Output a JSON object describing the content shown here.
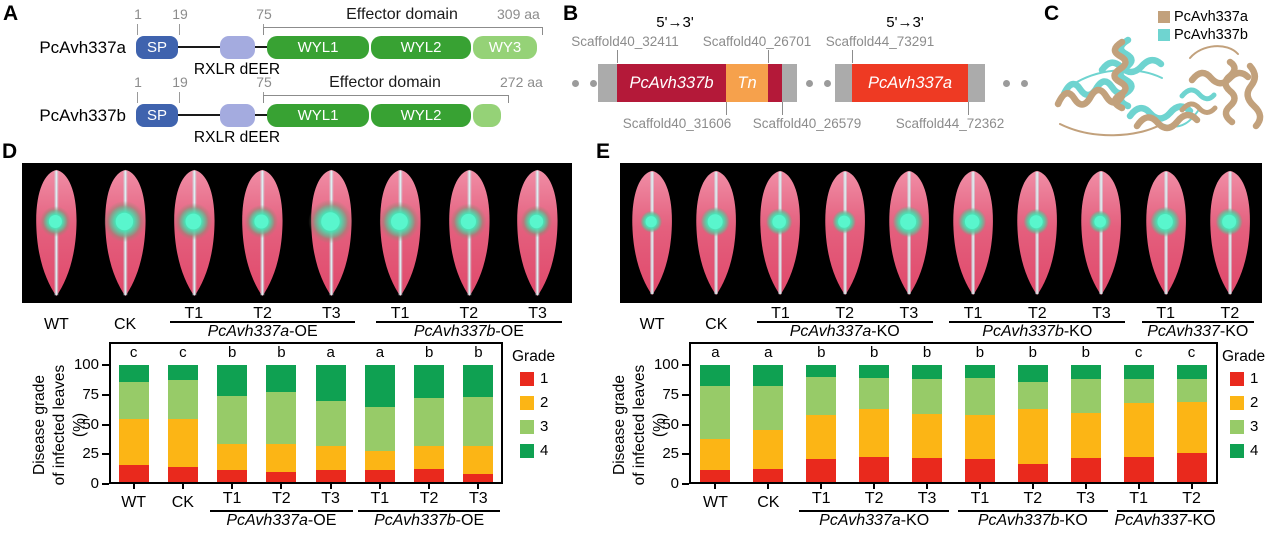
{
  "colors": {
    "grade1": "#e9291d",
    "grade2": "#fcb515",
    "grade3": "#97cb68",
    "grade4": "#0fa152",
    "sp_blue": "#3f63ae",
    "rxlr_blue": "#a4abdf",
    "wyl_green": "#38a233",
    "wy_light_green": "#95d277",
    "gene_b_red": "#b41939",
    "tn_orange": "#f6a14c",
    "gene_a_red": "#ee3a23",
    "flank_gray": "#ababab",
    "dot_gray": "#9b9b9b",
    "structure_a": "#c2a17c",
    "structure_b": "#6fd4d0"
  },
  "panels": {
    "a": {
      "label": "A",
      "positions": [
        "1",
        "19",
        "75"
      ],
      "effector_label": "Effector domain",
      "sp_label": "SP",
      "rxlr_label": "RXLR dEER",
      "proteins": [
        {
          "name": "PcAvh337a",
          "length_label": "309 aa",
          "domains": [
            "WYL1",
            "WYL2",
            "WY3"
          ]
        },
        {
          "name": "PcAvh337b",
          "length_label": "272 aa",
          "domains": [
            "WYL1",
            "WYL2",
            ""
          ]
        }
      ]
    },
    "b": {
      "label": "B",
      "direction_left": "5'→3'",
      "direction_right": "5'→3'",
      "top_labels": [
        "Scaffold40_32411",
        "Scaffold40_26701",
        "Scaffold44_73291"
      ],
      "bottom_labels": [
        "Scaffold40_31606",
        "Scaffold40_26579",
        "Scaffold44_72362"
      ],
      "gene_left": "PcAvh337b",
      "tn_label": "Tn",
      "gene_right": "PcAvh337a"
    },
    "c": {
      "label": "C",
      "legend": [
        {
          "name": "PcAvh337a",
          "color_key": "structure_a"
        },
        {
          "name": "PcAvh337b",
          "color_key": "structure_b"
        }
      ]
    },
    "d": {
      "label": "D",
      "leaf_labels": [
        "WT",
        "CK",
        "T1",
        "T2",
        "T3",
        "T1",
        "T2",
        "T3"
      ],
      "leaf_groups": [
        {
          "italic": "PcAvh337a",
          "suffix": "-OE",
          "from": 2,
          "to": 4
        },
        {
          "italic": "PcAvh337b",
          "suffix": "-OE",
          "from": 5,
          "to": 7
        }
      ]
    },
    "e": {
      "label": "E",
      "leaf_labels": [
        "WT",
        "CK",
        "T1",
        "T2",
        "T3",
        "T1",
        "T2",
        "T3",
        "T1",
        "T2"
      ],
      "leaf_groups": [
        {
          "italic": "PcAvh337a",
          "suffix": "-KO",
          "from": 2,
          "to": 4
        },
        {
          "italic": "PcAvh337b",
          "suffix": "-KO",
          "from": 5,
          "to": 7
        },
        {
          "italic": "PcAvh337",
          "suffix": "-KO",
          "from": 8,
          "to": 9
        }
      ]
    }
  },
  "chart_data": [
    {
      "id": "d",
      "type": "bar",
      "stacked": true,
      "ylabel_lines": [
        "Disease grade",
        "of infected leaves (%)"
      ],
      "ylim": [
        0,
        100
      ],
      "yticks": [
        0,
        25,
        50,
        75,
        100
      ],
      "categories": [
        "WT",
        "CK",
        "T1",
        "T2",
        "T3",
        "T1",
        "T2",
        "T3"
      ],
      "groups": [
        {
          "italic": "PcAvh337a",
          "suffix": "-OE",
          "from": 2,
          "to": 4
        },
        {
          "italic": "PcAvh337b",
          "suffix": "-OE",
          "from": 5,
          "to": 7
        }
      ],
      "sig_letters": [
        "c",
        "c",
        "b",
        "b",
        "a",
        "a",
        "b",
        "b"
      ],
      "legend_title": "Grade",
      "legend_position": "right",
      "grid": false,
      "series": [
        {
          "name": "1",
          "color": "#e9291d",
          "values": [
            16,
            14,
            12,
            10,
            12,
            12,
            13,
            8
          ]
        },
        {
          "name": "2",
          "color": "#fcb515",
          "values": [
            39,
            41,
            22,
            24,
            20,
            16,
            19,
            24
          ]
        },
        {
          "name": "3",
          "color": "#97cb68",
          "values": [
            31,
            32,
            40,
            43,
            38,
            37,
            40,
            41
          ]
        },
        {
          "name": "4",
          "color": "#0fa152",
          "values": [
            14,
            13,
            26,
            23,
            30,
            35,
            28,
            27
          ]
        }
      ]
    },
    {
      "id": "e",
      "type": "bar",
      "stacked": true,
      "ylabel_lines": [
        "Disease grade",
        "of infected leaves (%)"
      ],
      "ylim": [
        0,
        100
      ],
      "yticks": [
        0,
        25,
        50,
        75,
        100
      ],
      "categories": [
        "WT",
        "CK",
        "T1",
        "T2",
        "T3",
        "T1",
        "T2",
        "T3",
        "T1",
        "T2"
      ],
      "groups": [
        {
          "italic": "PcAvh337a",
          "suffix": "-KO",
          "from": 2,
          "to": 4
        },
        {
          "italic": "PcAvh337b",
          "suffix": "-KO",
          "from": 5,
          "to": 7
        },
        {
          "italic": "PcAvh337",
          "suffix": "-KO",
          "from": 8,
          "to": 9
        }
      ],
      "sig_letters": [
        "a",
        "a",
        "b",
        "b",
        "b",
        "b",
        "b",
        "b",
        "c",
        "c"
      ],
      "legend_title": "Grade",
      "legend_position": "right",
      "grid": false,
      "series": [
        {
          "name": "1",
          "color": "#e9291d",
          "values": [
            12,
            13,
            21,
            23,
            22,
            21,
            17,
            22,
            23,
            26
          ]
        },
        {
          "name": "2",
          "color": "#fcb515",
          "values": [
            26,
            32,
            37,
            40,
            37,
            37,
            46,
            38,
            45,
            43
          ]
        },
        {
          "name": "3",
          "color": "#97cb68",
          "values": [
            44,
            37,
            32,
            26,
            29,
            31,
            23,
            28,
            20,
            19
          ]
        },
        {
          "name": "4",
          "color": "#0fa152",
          "values": [
            18,
            18,
            10,
            11,
            12,
            11,
            14,
            12,
            12,
            12
          ]
        }
      ]
    }
  ]
}
